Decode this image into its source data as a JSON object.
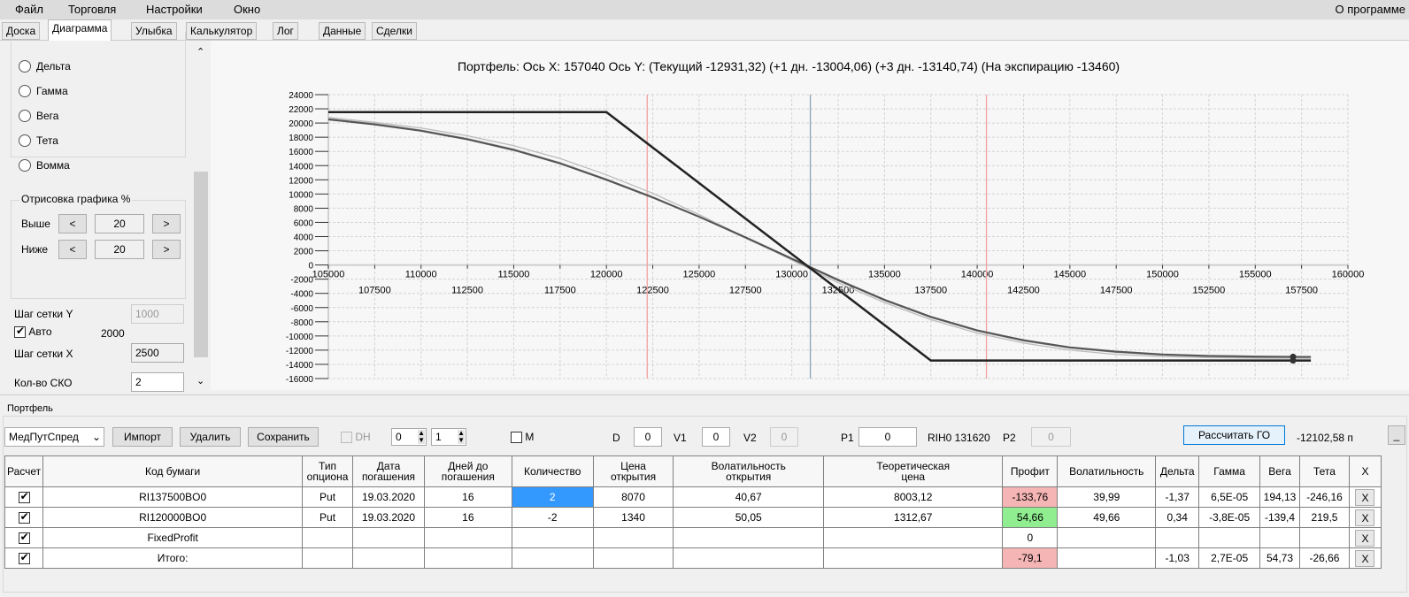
{
  "menu": {
    "items": [
      "Файл",
      "Торговля",
      "Настройки",
      "Окно"
    ],
    "about": "О программе"
  },
  "tabs": [
    "Доска",
    "Диаграмма",
    "Улыбка",
    "Калькулятор",
    "Лог",
    "Данные",
    "Сделки"
  ],
  "active_tab": "Диаграмма",
  "left_panel": {
    "radios": [
      "Дельта",
      "Гамма",
      "Вега",
      "Тета",
      "Вомма"
    ],
    "draw_group": {
      "title": "Отрисовка графика %",
      "above_label": "Выше",
      "above_value": "20",
      "below_label": "Ниже",
      "below_value": "20",
      "dec": "<",
      "inc": ">"
    },
    "grid_y_label": "Шаг сетки Y",
    "grid_y_value": "1000",
    "auto_label": "Авто",
    "auto_checked": true,
    "auto_value": "2000",
    "grid_x_label": "Шаг сетки X",
    "grid_x_value": "2500",
    "sko_label": "Кол-во СКО",
    "sko_value": "2"
  },
  "chart_data": {
    "type": "line",
    "title": "Портфель: Ось X:  157040 Ось Y:  (Текущий -12931,32)  (+1 дн. -13004,06)  (+3 дн. -13140,74)  (На экспирацию -13460)",
    "xlim": [
      105000,
      160000
    ],
    "ylim": [
      -16000,
      24000
    ],
    "x_step": 2500,
    "y_step": 2000,
    "grid": true,
    "x": [
      105000,
      107500,
      110000,
      112500,
      115000,
      117500,
      120000,
      122500,
      125000,
      127500,
      130000,
      132500,
      135000,
      137500,
      140000,
      142500,
      145000,
      147500,
      150000,
      152500,
      155000,
      157500,
      158000
    ],
    "series": [
      {
        "key": "expiration",
        "color": "#222222",
        "values": [
          21540,
          21540,
          21540,
          21540,
          21540,
          21540,
          21540,
          16540,
          11540,
          6540,
          1540,
          -3460,
          -8460,
          -13460,
          -13460,
          -13460,
          -13460,
          -13460,
          -13460,
          -13460,
          -13460,
          -13460,
          -13460
        ]
      },
      {
        "key": "current",
        "color": "#555555",
        "values": [
          20500,
          19800,
          18900,
          17700,
          16200,
          14300,
          12000,
          9500,
          6800,
          3900,
          900,
          -2100,
          -4900,
          -7300,
          -9200,
          -10600,
          -11600,
          -12200,
          -12600,
          -12800,
          -12900,
          -12940,
          -12950
        ]
      },
      {
        "key": "plus1",
        "color": "#888888",
        "values": [
          20600,
          19900,
          19000,
          17800,
          16300,
          14400,
          12100,
          9600,
          6800,
          3800,
          800,
          -2200,
          -5000,
          -7400,
          -9300,
          -10700,
          -11700,
          -12300,
          -12700,
          -12900,
          -13000,
          -13005,
          -13010
        ]
      },
      {
        "key": "plus3",
        "color": "#bbbbbb",
        "values": [
          20800,
          20100,
          19300,
          18200,
          16800,
          15000,
          12700,
          10100,
          7100,
          3900,
          700,
          -2500,
          -5300,
          -7700,
          -9600,
          -11000,
          -12000,
          -12600,
          -12900,
          -13050,
          -13130,
          -13140,
          -13145
        ]
      }
    ],
    "marker": {
      "x": 157040,
      "values": [
        -12931,
        -13460
      ]
    },
    "vlines": [
      {
        "x": 122200,
        "color": "#f4a0a0"
      },
      {
        "x": 131000,
        "color": "#8aa4b8"
      },
      {
        "x": 140500,
        "color": "#f4a0a0"
      }
    ]
  },
  "portfolio": {
    "title": "Портфель",
    "select": "МедПутСпред",
    "import": "Импорт",
    "delete": "Удалить",
    "save": "Сохранить",
    "dh": "DH",
    "spin1": "0",
    "spin2": "1",
    "m": "M",
    "d_label": "D",
    "d": "0",
    "v1_label": "V1",
    "v1": "0",
    "v2_label": "V2",
    "v2": "0",
    "p1_label": "P1",
    "p1": "0",
    "ticker": "RIH0 131620",
    "p2_label": "P2",
    "p2": "0",
    "calc": "Рассчитать ГО",
    "go_value": "-12102,58 п",
    "more": "_"
  },
  "table": {
    "headers": [
      "Расчет",
      "Код бумаги",
      "Тип\nопциона",
      "Дата\nпогашения",
      "Дней до\nпогашения",
      "Количество",
      "Цена\nоткрытия",
      "Волатильность\nоткрытия",
      "Теоретическая\nцена",
      "Профит",
      "Волатильность",
      "Дельта",
      "Гамма",
      "Вега",
      "Тета",
      "X"
    ],
    "rows": [
      [
        "RI137500BO0",
        "Put",
        "19.03.2020",
        "16",
        "2",
        "8070",
        "40,67",
        "8003,12",
        "-133,76",
        "39,99",
        "-1,37",
        "6,5E-05",
        "194,13",
        "-246,16"
      ],
      [
        "RI120000BO0",
        "Put",
        "19.03.2020",
        "16",
        "-2",
        "1340",
        "50,05",
        "1312,67",
        "54,66",
        "49,66",
        "0,34",
        "-3,8E-05",
        "-139,4",
        "219,5"
      ],
      [
        "FixedProfit",
        "",
        "",
        "",
        "",
        "",
        "",
        "",
        "0",
        "",
        "",
        "",
        "",
        ""
      ],
      [
        "Итого:",
        "",
        "",
        "",
        "",
        "",
        "",
        "",
        "-79,1",
        "",
        "-1,03",
        "2,7E-05",
        "54,73",
        "-26,66"
      ]
    ],
    "profit_colors": [
      "red",
      "green",
      "",
      "red"
    ],
    "delete_label": "X"
  }
}
